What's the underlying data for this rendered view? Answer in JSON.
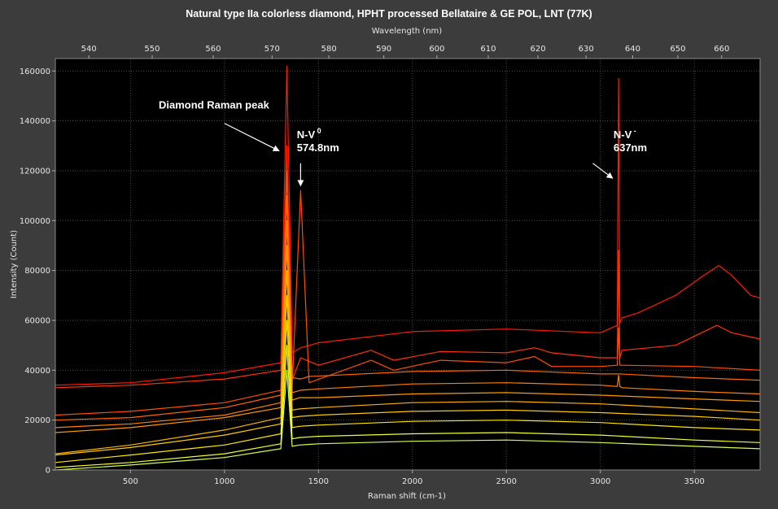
{
  "chart_data": {
    "type": "line",
    "title": "Natural type IIa colorless diamond, HPHT processed Bellataire & GE POL, LNT (77K)",
    "xlabel": "Raman shift (cm-1)",
    "x2label": "Wavelength (nm)",
    "ylabel": "Intensity (Count)",
    "xlim": [
      100,
      3850
    ],
    "ylim": [
      0,
      165000
    ],
    "x_ticks": [
      "500",
      "1000",
      "1500",
      "2000",
      "2500",
      "3000",
      "3500"
    ],
    "x2_ticks": [
      "540",
      "550",
      "560",
      "570",
      "580",
      "590",
      "600",
      "610",
      "620",
      "630",
      "640",
      "650",
      "660"
    ],
    "y_ticks": [
      "0",
      "20000",
      "40000",
      "60000",
      "80000",
      "100000",
      "120000",
      "140000",
      "160000"
    ],
    "grid": true,
    "legend": "none",
    "series": [
      {
        "color": "#ff1a00",
        "x": [
          100,
          500,
          1000,
          1300,
          1332,
          1360,
          1405,
          1500,
          2000,
          2500,
          3000,
          3090,
          3097,
          3104,
          3115,
          3200,
          3400,
          3550,
          3630,
          3700,
          3800,
          3850
        ],
        "y": [
          34000,
          35000,
          39000,
          43000,
          162000,
          47000,
          49000,
          51000,
          55500,
          56500,
          55000,
          58000,
          157000,
          59000,
          61000,
          63000,
          70000,
          78000,
          82000,
          78000,
          70000,
          69000
        ]
      },
      {
        "color": "#ff3300",
        "x": [
          100,
          500,
          1000,
          1300,
          1332,
          1360,
          1405,
          1500,
          1780,
          1900,
          2150,
          2500,
          2650,
          2740,
          3000,
          3090,
          3097,
          3104,
          3115,
          3400,
          3620,
          3700,
          3850
        ],
        "y": [
          33000,
          34000,
          36500,
          40000,
          130000,
          36000,
          45000,
          42000,
          48000,
          44000,
          47500,
          47000,
          49000,
          47000,
          45000,
          45000,
          88000,
          45000,
          48000,
          50000,
          58000,
          55000,
          52500
        ]
      },
      {
        "color": "#ff4d00",
        "x": [
          100,
          500,
          1000,
          1300,
          1332,
          1360,
          1405,
          1450,
          1780,
          1900,
          2150,
          2500,
          2650,
          2740,
          3000,
          3090,
          3097,
          3104,
          3115,
          3500,
          3850
        ],
        "y": [
          22000,
          23500,
          27000,
          32000,
          120000,
          33000,
          112000,
          35000,
          44000,
          40000,
          44000,
          43000,
          45500,
          41500,
          41500,
          42000,
          57000,
          42000,
          42000,
          41500,
          40000
        ]
      },
      {
        "color": "#ff6600",
        "x": [
          100,
          500,
          1000,
          1300,
          1332,
          1360,
          1405,
          1450,
          2000,
          2500,
          3000,
          3097,
          3104,
          3500,
          3850
        ],
        "y": [
          20000,
          21000,
          25000,
          30000,
          110000,
          37000,
          36500,
          37500,
          39500,
          40000,
          38500,
          38500,
          38500,
          37000,
          36000
        ]
      },
      {
        "color": "#ff8000",
        "x": [
          100,
          500,
          1000,
          1300,
          1332,
          1360,
          1405,
          1500,
          2000,
          2500,
          3000,
          3090,
          3097,
          3104,
          3115,
          3500,
          3850
        ],
        "y": [
          17000,
          18500,
          22000,
          27000,
          100000,
          31000,
          32000,
          32500,
          34500,
          35000,
          34000,
          33500,
          38000,
          33500,
          33000,
          31500,
          30500
        ]
      },
      {
        "color": "#ff9900",
        "x": [
          100,
          500,
          1000,
          1300,
          1332,
          1360,
          1400,
          1500,
          2000,
          2500,
          3000,
          3500,
          3850
        ],
        "y": [
          15000,
          17000,
          21000,
          25000,
          90000,
          28000,
          29000,
          29000,
          30500,
          31000,
          30000,
          28500,
          27500
        ]
      },
      {
        "color": "#ffb300",
        "x": [
          100,
          500,
          1000,
          1300,
          1332,
          1360,
          1400,
          1500,
          2000,
          2500,
          3000,
          3500,
          3850
        ],
        "y": [
          6500,
          10000,
          16000,
          21000,
          80000,
          24000,
          24500,
          25000,
          27000,
          27500,
          26500,
          24500,
          23000
        ]
      },
      {
        "color": "#ffcc00",
        "x": [
          100,
          500,
          1000,
          1300,
          1332,
          1360,
          1400,
          1500,
          2000,
          2500,
          3000,
          3500,
          3850
        ],
        "y": [
          6000,
          9000,
          14000,
          18500,
          70000,
          21000,
          21500,
          22000,
          23500,
          24000,
          23000,
          21500,
          20000
        ]
      },
      {
        "color": "#ffe600",
        "x": [
          100,
          500,
          1000,
          1300,
          1332,
          1360,
          1400,
          1500,
          2000,
          2500,
          3000,
          3500,
          3850
        ],
        "y": [
          3000,
          6000,
          10000,
          14500,
          60000,
          17000,
          17500,
          18000,
          19500,
          20000,
          19000,
          17000,
          16000
        ]
      },
      {
        "color": "#f2ff33",
        "x": [
          100,
          500,
          1000,
          1300,
          1332,
          1360,
          1400,
          1500,
          2000,
          2500,
          3000,
          3500,
          3850
        ],
        "y": [
          1000,
          3000,
          6500,
          10500,
          50000,
          12500,
          13000,
          13500,
          14500,
          15000,
          14000,
          12000,
          11000
        ]
      },
      {
        "color": "#d4ff4d",
        "x": [
          100,
          500,
          1000,
          1300,
          1332,
          1360,
          1400,
          1500,
          2000,
          2500,
          3000,
          3500,
          3850
        ],
        "y": [
          0,
          2000,
          5000,
          8500,
          40000,
          9500,
          10000,
          10500,
          11500,
          12000,
          11000,
          9500,
          8500
        ]
      }
    ],
    "annotations": [
      {
        "lines": [
          "Diamond Raman peak"
        ],
        "text_x": 650,
        "text_y": 145000,
        "arrow_from": [
          1000,
          139000
        ],
        "arrow_to": [
          1290,
          128000
        ]
      },
      {
        "lines": [
          "N-V",
          "574.8nm"
        ],
        "sup": "0",
        "text_x": 1385,
        "text_y": 133000,
        "arrow_from": [
          1405,
          123000
        ],
        "arrow_to": [
          1405,
          114000
        ]
      },
      {
        "lines": [
          "N-V",
          "637nm"
        ],
        "sup": "-",
        "text_x": 3070,
        "text_y": 133000,
        "arrow_from": [
          2960,
          123000
        ],
        "arrow_to": [
          3065,
          117000
        ]
      }
    ]
  }
}
